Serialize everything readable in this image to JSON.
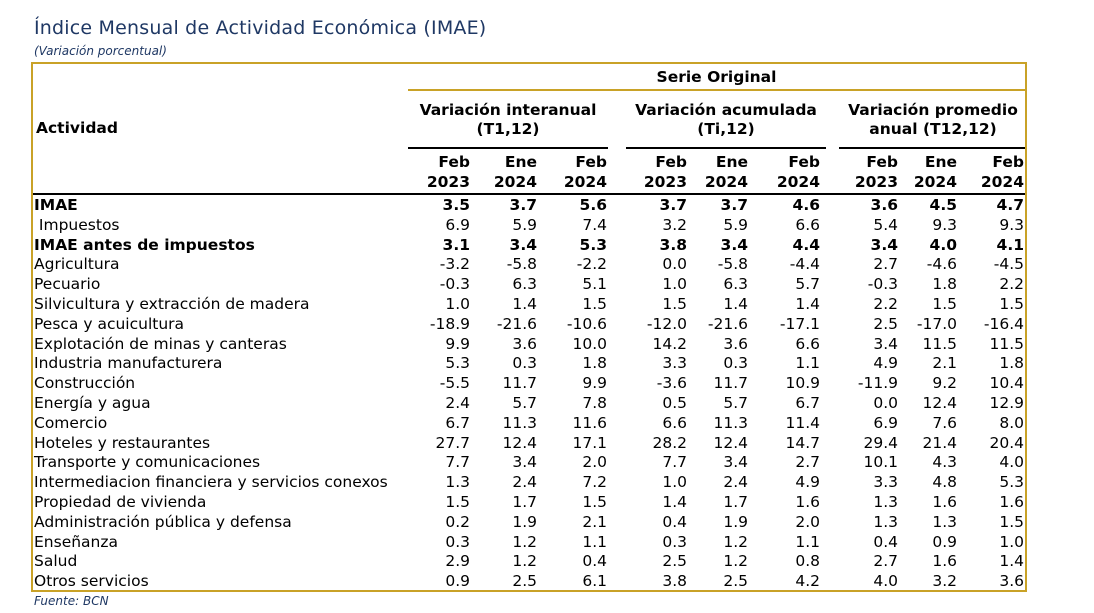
{
  "title": "Índice Mensual de Actividad Económica (IMAE)",
  "subtitle": "(Variación porcentual)",
  "source": "Fuente: BCN",
  "header": {
    "activity": "Actividad",
    "series": "Serie Original",
    "groups": [
      {
        "line1": "Variación interanual",
        "line2": "(T1,12)"
      },
      {
        "line1": "Variación acumulada",
        "line2": "(Ti,12)"
      },
      {
        "line1": "Variación promedio",
        "line2": "anual (T12,12)"
      }
    ],
    "cols": [
      {
        "m": "Feb",
        "y": "2023"
      },
      {
        "m": "Ene",
        "y": "2024"
      },
      {
        "m": "Feb",
        "y": "2024"
      },
      {
        "m": "Feb",
        "y": "2023"
      },
      {
        "m": "Ene",
        "y": "2024"
      },
      {
        "m": "Feb",
        "y": "2024"
      },
      {
        "m": "Feb",
        "y": "2023"
      },
      {
        "m": "Ene",
        "y": "2024"
      },
      {
        "m": "Feb",
        "y": "2024"
      }
    ]
  },
  "rows": [
    {
      "label": "IMAE",
      "bold": true,
      "values": [
        "3.5",
        "3.7",
        "5.6",
        "3.7",
        "3.7",
        "4.6",
        "3.6",
        "4.5",
        "4.7"
      ]
    },
    {
      "label": " Impuestos",
      "bold": false,
      "values": [
        "6.9",
        "5.9",
        "7.4",
        "3.2",
        "5.9",
        "6.6",
        "5.4",
        "9.3",
        "9.3"
      ]
    },
    {
      "label": "IMAE antes de impuestos",
      "bold": true,
      "values": [
        "3.1",
        "3.4",
        "5.3",
        "3.8",
        "3.4",
        "4.4",
        "3.4",
        "4.0",
        "4.1"
      ]
    },
    {
      "label": "Agricultura",
      "bold": false,
      "values": [
        "-3.2",
        "-5.8",
        "-2.2",
        "0.0",
        "-5.8",
        "-4.4",
        "2.7",
        "-4.6",
        "-4.5"
      ]
    },
    {
      "label": "Pecuario",
      "bold": false,
      "values": [
        "-0.3",
        "6.3",
        "5.1",
        "1.0",
        "6.3",
        "5.7",
        "-0.3",
        "1.8",
        "2.2"
      ]
    },
    {
      "label": "Silvicultura y extracción de madera",
      "bold": false,
      "values": [
        "1.0",
        "1.4",
        "1.5",
        "1.5",
        "1.4",
        "1.4",
        "2.2",
        "1.5",
        "1.5"
      ]
    },
    {
      "label": "Pesca y acuicultura",
      "bold": false,
      "values": [
        "-18.9",
        "-21.6",
        "-10.6",
        "-12.0",
        "-21.6",
        "-17.1",
        "2.5",
        "-17.0",
        "-16.4"
      ]
    },
    {
      "label": "Explotación de minas y canteras",
      "bold": false,
      "values": [
        "9.9",
        "3.6",
        "10.0",
        "14.2",
        "3.6",
        "6.6",
        "3.4",
        "11.5",
        "11.5"
      ]
    },
    {
      "label": "Industria manufacturera",
      "bold": false,
      "values": [
        "5.3",
        "0.3",
        "1.8",
        "3.3",
        "0.3",
        "1.1",
        "4.9",
        "2.1",
        "1.8"
      ]
    },
    {
      "label": "Construcción",
      "bold": false,
      "values": [
        "-5.5",
        "11.7",
        "9.9",
        "-3.6",
        "11.7",
        "10.9",
        "-11.9",
        "9.2",
        "10.4"
      ]
    },
    {
      "label": "Energía y agua",
      "bold": false,
      "values": [
        "2.4",
        "5.7",
        "7.8",
        "0.5",
        "5.7",
        "6.7",
        "0.0",
        "12.4",
        "12.9"
      ]
    },
    {
      "label": "Comercio",
      "bold": false,
      "values": [
        "6.7",
        "11.3",
        "11.6",
        "6.6",
        "11.3",
        "11.4",
        "6.9",
        "7.6",
        "8.0"
      ]
    },
    {
      "label": "Hoteles y restaurantes",
      "bold": false,
      "values": [
        "27.7",
        "12.4",
        "17.1",
        "28.2",
        "12.4",
        "14.7",
        "29.4",
        "21.4",
        "20.4"
      ]
    },
    {
      "label": "Transporte y comunicaciones",
      "bold": false,
      "values": [
        "7.7",
        "3.4",
        "2.0",
        "7.7",
        "3.4",
        "2.7",
        "10.1",
        "4.3",
        "4.0"
      ]
    },
    {
      "label": "Intermediacion financiera y servicios conexos",
      "bold": false,
      "values": [
        "1.3",
        "2.4",
        "7.2",
        "1.0",
        "2.4",
        "4.9",
        "3.3",
        "4.8",
        "5.3"
      ]
    },
    {
      "label": "Propiedad de vivienda",
      "bold": false,
      "values": [
        "1.5",
        "1.7",
        "1.5",
        "1.4",
        "1.7",
        "1.6",
        "1.3",
        "1.6",
        "1.6"
      ]
    },
    {
      "label": "Administración pública y defensa",
      "bold": false,
      "values": [
        "0.2",
        "1.9",
        "2.1",
        "0.4",
        "1.9",
        "2.0",
        "1.3",
        "1.3",
        "1.5"
      ]
    },
    {
      "label": "Enseñanza",
      "bold": false,
      "values": [
        "0.3",
        "1.2",
        "1.1",
        "0.3",
        "1.2",
        "1.1",
        "0.4",
        "0.9",
        "1.0"
      ]
    },
    {
      "label": "Salud",
      "bold": false,
      "values": [
        "2.9",
        "1.2",
        "0.4",
        "2.5",
        "1.2",
        "0.8",
        "2.7",
        "1.6",
        "1.4"
      ]
    },
    {
      "label": "Otros servicios",
      "bold": false,
      "values": [
        "0.9",
        "2.5",
        "6.1",
        "3.8",
        "2.5",
        "4.2",
        "4.0",
        "3.2",
        "3.6"
      ]
    }
  ]
}
